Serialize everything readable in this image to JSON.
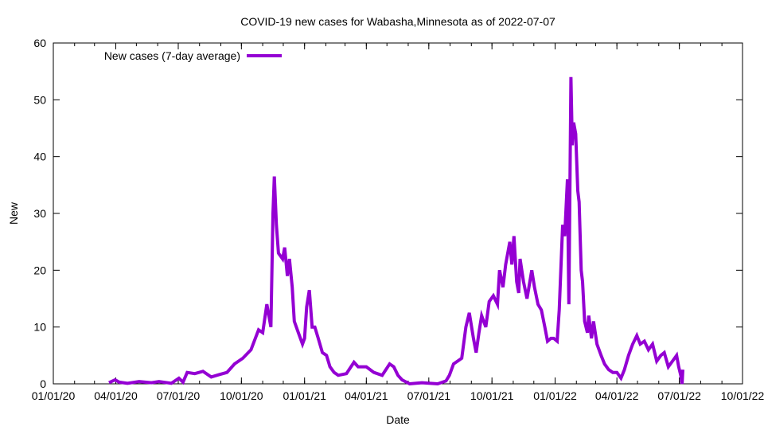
{
  "chart_data": {
    "type": "line",
    "title": "COVID-19 new cases for Wabasha,Minnesota as of 2022-07-07",
    "xlabel": "Date",
    "ylabel": "New",
    "x_unit": "days since 2020-01-01",
    "xlim": [
      0,
      1004
    ],
    "ylim": [
      0,
      60
    ],
    "yticks": [
      0,
      10,
      20,
      30,
      40,
      50,
      60
    ],
    "xticks": [
      {
        "day": 0,
        "label": "01/01/20"
      },
      {
        "day": 91,
        "label": "04/01/20"
      },
      {
        "day": 182,
        "label": "07/01/20"
      },
      {
        "day": 274,
        "label": "10/01/20"
      },
      {
        "day": 366,
        "label": "01/01/21"
      },
      {
        "day": 456,
        "label": "04/01/21"
      },
      {
        "day": 547,
        "label": "07/01/21"
      },
      {
        "day": 639,
        "label": "10/01/21"
      },
      {
        "day": 731,
        "label": "01/01/22"
      },
      {
        "day": 821,
        "label": "04/01/22"
      },
      {
        "day": 912,
        "label": "07/01/22"
      },
      {
        "day": 1004,
        "label": "10/01/22"
      }
    ],
    "grid": false,
    "legend_position": "top-left",
    "series": [
      {
        "name": "New cases (7-day average)",
        "color": "#9400d3",
        "points": [
          [
            81,
            0.2
          ],
          [
            90,
            0.7
          ],
          [
            96,
            0.3
          ],
          [
            108,
            0.1
          ],
          [
            125,
            0.4
          ],
          [
            143,
            0.2
          ],
          [
            154,
            0.4
          ],
          [
            172,
            0.1
          ],
          [
            183,
            1.0
          ],
          [
            189,
            0.3
          ],
          [
            195,
            2.0
          ],
          [
            206,
            1.8
          ],
          [
            218,
            2.2
          ],
          [
            230,
            1.2
          ],
          [
            241,
            1.6
          ],
          [
            253,
            2.0
          ],
          [
            264,
            3.5
          ],
          [
            276,
            4.5
          ],
          [
            288,
            6.0
          ],
          [
            299,
            9.5
          ],
          [
            305,
            9.0
          ],
          [
            311,
            14.0
          ],
          [
            317,
            10.0
          ],
          [
            320,
            30
          ],
          [
            322,
            36.5
          ],
          [
            325,
            28
          ],
          [
            328,
            23
          ],
          [
            334,
            22
          ],
          [
            337,
            24
          ],
          [
            341,
            19
          ],
          [
            344,
            22
          ],
          [
            348,
            17
          ],
          [
            351,
            11
          ],
          [
            357,
            9
          ],
          [
            363,
            7
          ],
          [
            366,
            8
          ],
          [
            369,
            13.5
          ],
          [
            373,
            16.5
          ],
          [
            377,
            10
          ],
          [
            381,
            10
          ],
          [
            386,
            8
          ],
          [
            392,
            5.5
          ],
          [
            398,
            5.0
          ],
          [
            403,
            3
          ],
          [
            409,
            2
          ],
          [
            415,
            1.5
          ],
          [
            427,
            1.8
          ],
          [
            438,
            3.8
          ],
          [
            444,
            3.0
          ],
          [
            456,
            3.0
          ],
          [
            467,
            2.0
          ],
          [
            479,
            1.5
          ],
          [
            490,
            3.5
          ],
          [
            496,
            3.0
          ],
          [
            502,
            1.5
          ],
          [
            508,
            0.7
          ],
          [
            519,
            0.0
          ],
          [
            537,
            0.2
          ],
          [
            560,
            0.0
          ],
          [
            572,
            0.5
          ],
          [
            577,
            1.5
          ],
          [
            583,
            3.5
          ],
          [
            589,
            4.0
          ],
          [
            595,
            4.5
          ],
          [
            601,
            10
          ],
          [
            606,
            12.5
          ],
          [
            612,
            8
          ],
          [
            616,
            5.5
          ],
          [
            620,
            9
          ],
          [
            624,
            12
          ],
          [
            630,
            10
          ],
          [
            635,
            14.5
          ],
          [
            641,
            15.5
          ],
          [
            647,
            14
          ],
          [
            650,
            20
          ],
          [
            655,
            17
          ],
          [
            659,
            21
          ],
          [
            665,
            25
          ],
          [
            668,
            21
          ],
          [
            671,
            26
          ],
          [
            675,
            18
          ],
          [
            678,
            16
          ],
          [
            680,
            22
          ],
          [
            685,
            18
          ],
          [
            690,
            15
          ],
          [
            697,
            20
          ],
          [
            701,
            17
          ],
          [
            706,
            14
          ],
          [
            711,
            13
          ],
          [
            716,
            10
          ],
          [
            720,
            7.5
          ],
          [
            725,
            8
          ],
          [
            729,
            8
          ],
          [
            734,
            7.5
          ],
          [
            737,
            13
          ],
          [
            742,
            28
          ],
          [
            745,
            26
          ],
          [
            749,
            36
          ],
          [
            751,
            14
          ],
          [
            754,
            54
          ],
          [
            756,
            42
          ],
          [
            758,
            46
          ],
          [
            761,
            44
          ],
          [
            764,
            34
          ],
          [
            766,
            32
          ],
          [
            769,
            20
          ],
          [
            771,
            18
          ],
          [
            774,
            11
          ],
          [
            778,
            9
          ],
          [
            780,
            12
          ],
          [
            784,
            8
          ],
          [
            787,
            11
          ],
          [
            792,
            7
          ],
          [
            798,
            5
          ],
          [
            803,
            3.5
          ],
          [
            809,
            2.5
          ],
          [
            815,
            2
          ],
          [
            821,
            2
          ],
          [
            827,
            1
          ],
          [
            832,
            2.5
          ],
          [
            838,
            5
          ],
          [
            844,
            7
          ],
          [
            850,
            8.5
          ],
          [
            855,
            7
          ],
          [
            861,
            7.5
          ],
          [
            867,
            6
          ],
          [
            873,
            7
          ],
          [
            879,
            4
          ],
          [
            885,
            5
          ],
          [
            890,
            5.5
          ],
          [
            896,
            3
          ],
          [
            902,
            4
          ],
          [
            908,
            5
          ],
          [
            911,
            3
          ],
          [
            914,
            1.5
          ],
          [
            916,
            0
          ],
          [
            917,
            2.5
          ]
        ]
      }
    ]
  }
}
